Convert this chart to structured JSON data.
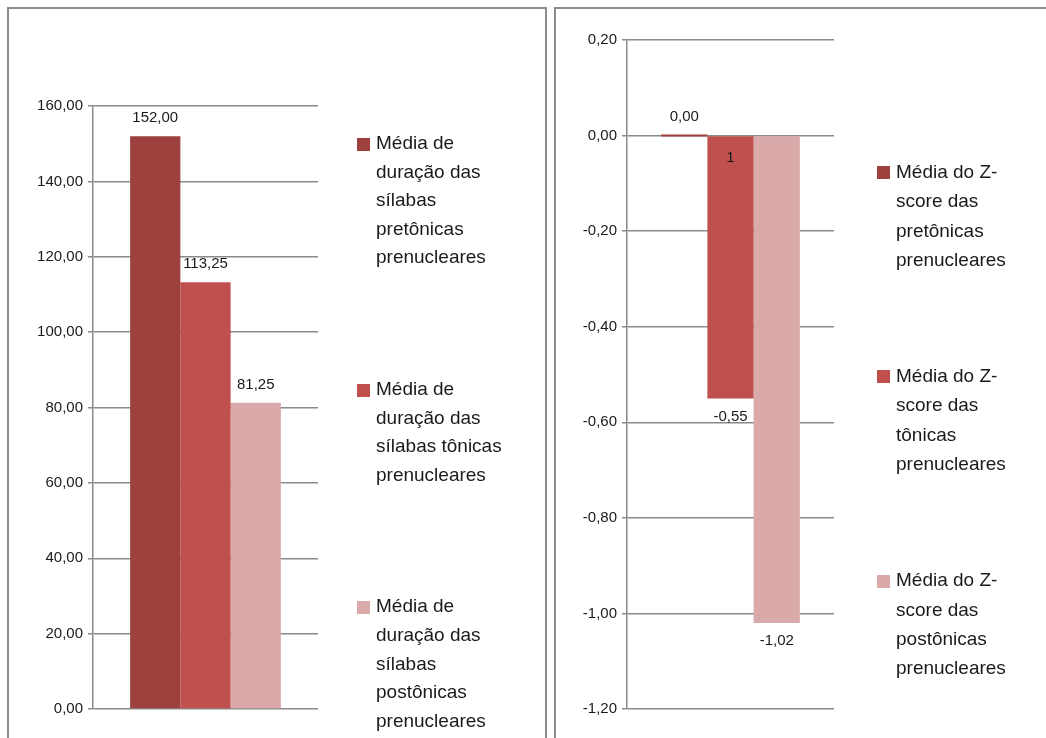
{
  "chart_data": [
    {
      "type": "bar",
      "categories": [
        null
      ],
      "series": [
        {
          "name": "Média de duração das sílabas pretônicas prenucleares",
          "color": "#9e413e",
          "values": [
            152
          ],
          "value_labels": [
            "152,00"
          ]
        },
        {
          "name": "Média de duração das sílabas tônicas prenucleares",
          "color": "#c0504d",
          "values": [
            113.25
          ],
          "value_labels": [
            "113,25"
          ]
        },
        {
          "name": "Média de duração das sílabas postônicas prenucleares",
          "color": "#d9aaa9",
          "values": [
            81.25
          ],
          "value_labels": [
            "81,25"
          ]
        }
      ],
      "ylim": [
        0,
        160
      ],
      "yticks": [
        {
          "value": 0,
          "label": "0,00"
        },
        {
          "value": 20,
          "label": "20,00"
        },
        {
          "value": 40,
          "label": "40,00"
        },
        {
          "value": 60,
          "label": "60,00"
        },
        {
          "value": 80,
          "label": "80,00"
        },
        {
          "value": 100,
          "label": "100,00"
        },
        {
          "value": 120,
          "label": "120,00"
        },
        {
          "value": 140,
          "label": "140,00"
        },
        {
          "value": 160,
          "label": "160,00"
        }
      ],
      "grid": "y",
      "legend": "right"
    },
    {
      "type": "bar",
      "categories": [
        null
      ],
      "series": [
        {
          "name": "Média do Z-score das pretônicas prenucleares",
          "color": "#9e413e",
          "values": [
            0
          ],
          "value_labels": [
            "0,00"
          ]
        },
        {
          "name": "Média do Z-score das tônicas prenucleares",
          "color": "#c0504d",
          "values": [
            -0.55
          ],
          "value_labels": [
            "-0,55"
          ]
        },
        {
          "name": "Média do Z-score das postônicas prenucleares",
          "color": "#d9aaa9",
          "values": [
            -1.02
          ],
          "value_labels": [
            "-1,02"
          ]
        }
      ],
      "ylim": [
        -1.2,
        0.2
      ],
      "yticks": [
        {
          "value": 0.2,
          "label": "0,20"
        },
        {
          "value": 0,
          "label": "0,00"
        },
        {
          "value": -0.2,
          "label": "-0,20"
        },
        {
          "value": -0.4,
          "label": "-0,40"
        },
        {
          "value": -0.6,
          "label": "-0,60"
        },
        {
          "value": -0.8,
          "label": "-0,80"
        },
        {
          "value": -1,
          "label": "-1,00"
        },
        {
          "value": -1.2,
          "label": "-1,20"
        }
      ],
      "grid": "y",
      "legend": "right",
      "annotations": [
        "1"
      ]
    }
  ]
}
